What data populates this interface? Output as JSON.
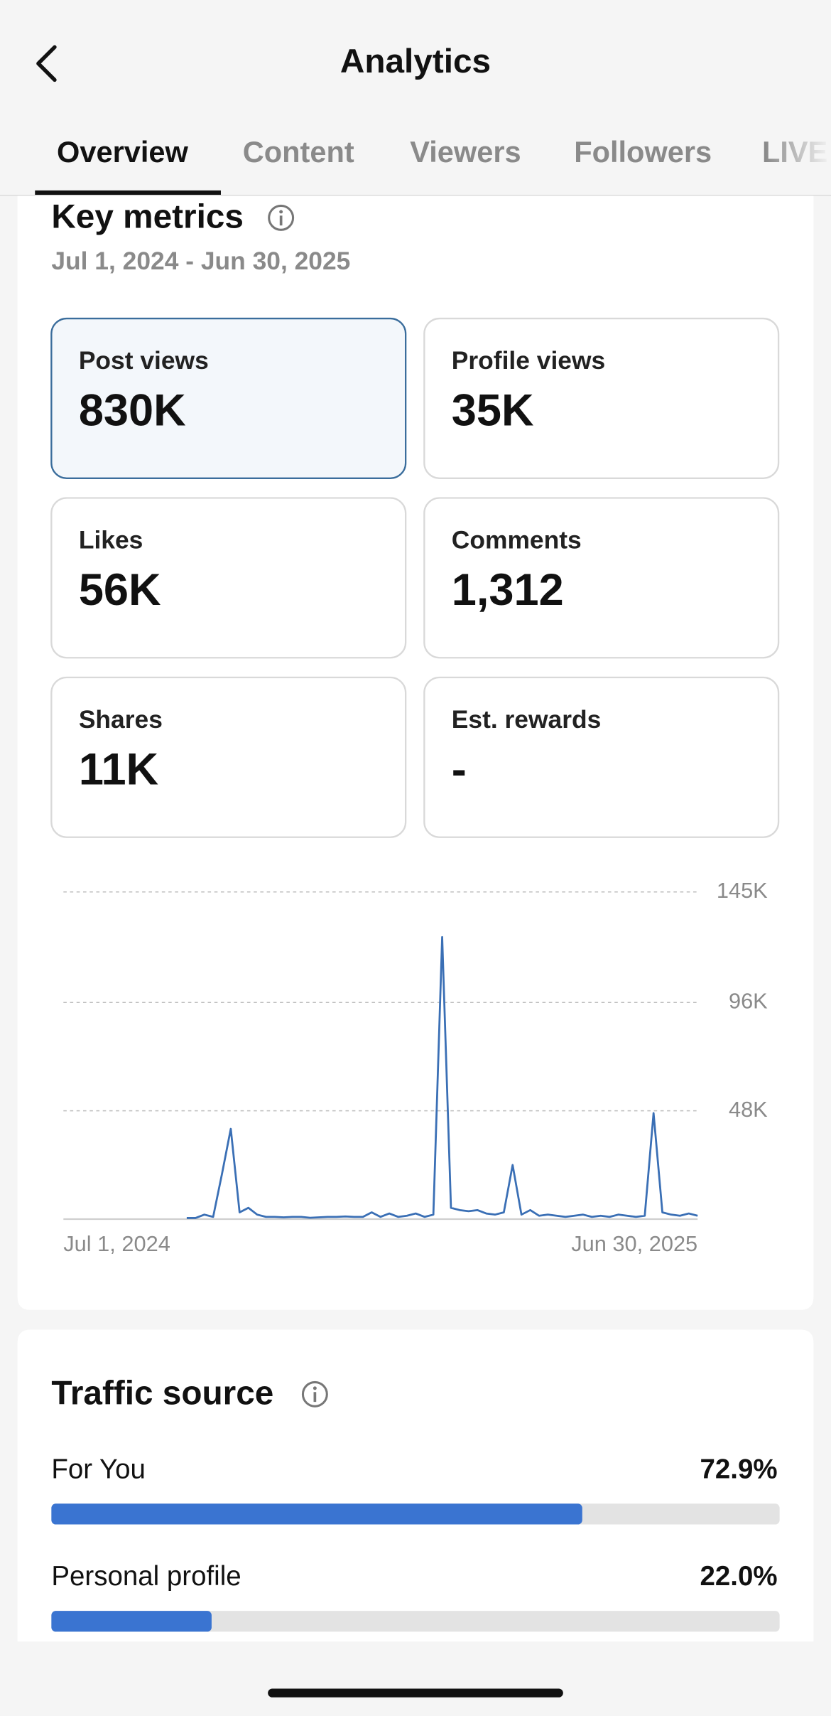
{
  "header": {
    "title": "Analytics"
  },
  "tabs": [
    "Overview",
    "Content",
    "Viewers",
    "Followers",
    "LIVE"
  ],
  "key_metrics": {
    "title": "Key metrics",
    "date_range": "Jul 1, 2024 - Jun 30, 2025",
    "metrics": [
      {
        "label": "Post views",
        "value": "830K"
      },
      {
        "label": "Profile views",
        "value": "35K"
      },
      {
        "label": "Likes",
        "value": "56K"
      },
      {
        "label": "Comments",
        "value": "1,312"
      },
      {
        "label": "Shares",
        "value": "11K"
      },
      {
        "label": "Est. rewards",
        "value": "-"
      }
    ]
  },
  "chart_data": {
    "type": "line",
    "color": "#3a6fb5",
    "x_labels": [
      "Jul 1, 2024",
      "Jun 30, 2025"
    ],
    "ylim": [
      0,
      145000
    ],
    "yticks": [
      {
        "value": 48000,
        "label": "48K"
      },
      {
        "value": 96000,
        "label": "96K"
      },
      {
        "value": 145000,
        "label": "145K"
      }
    ],
    "grid": true,
    "values": [
      null,
      null,
      null,
      null,
      null,
      null,
      null,
      null,
      null,
      null,
      null,
      null,
      null,
      null,
      500,
      500,
      2000,
      1000,
      20000,
      40000,
      3000,
      5000,
      2000,
      1000,
      1000,
      800,
      1000,
      1000,
      600,
      800,
      1000,
      1000,
      1200,
      1000,
      1000,
      3000,
      1000,
      2500,
      1000,
      1500,
      2500,
      1000,
      2000,
      125000,
      5000,
      4000,
      3500,
      4000,
      2500,
      2000,
      3000,
      24000,
      2000,
      4000,
      1500,
      2000,
      1500,
      1000,
      1500,
      2000,
      1000,
      1500,
      1000,
      2000,
      1500,
      1000,
      1500,
      47000,
      3000,
      2000,
      1500,
      2500,
      1500
    ]
  },
  "traffic_source": {
    "title": "Traffic source",
    "type": "bar",
    "color": "#3a74d1",
    "xlim": [
      0,
      100
    ],
    "categories": [
      "For You",
      "Personal profile"
    ],
    "values": [
      72.9,
      22.0
    ],
    "value_labels": [
      "72.9%",
      "22.0%"
    ]
  }
}
